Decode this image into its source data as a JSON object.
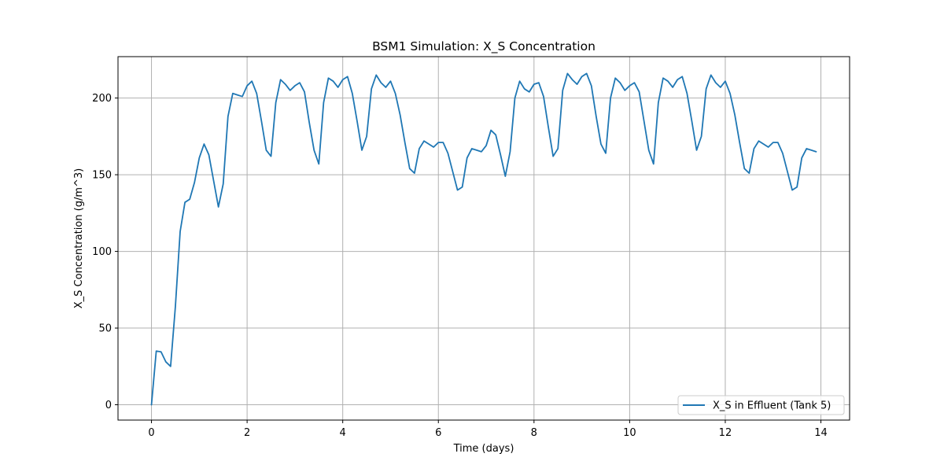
{
  "chart_data": {
    "type": "line",
    "title": "BSM1 Simulation: X_S Concentration",
    "xlabel": "Time (days)",
    "ylabel": "X_S Concentration (g/m^3)",
    "xlim": [
      -0.7,
      14.6
    ],
    "ylim": [
      -10,
      227
    ],
    "xticks": [
      0,
      2,
      4,
      6,
      8,
      10,
      12,
      14
    ],
    "yticks": [
      0,
      50,
      100,
      150,
      200
    ],
    "grid": true,
    "legend_position": "lower-right",
    "colors": {
      "series": "#1f77b4",
      "grid": "#b0b0b0"
    },
    "series": [
      {
        "name": "X_S in Effluent (Tank 5)",
        "x": [
          0.0,
          0.1,
          0.2,
          0.3,
          0.4,
          0.5,
          0.6,
          0.7,
          0.8,
          0.9,
          1.0,
          1.1,
          1.2,
          1.3,
          1.4,
          1.5,
          1.6,
          1.7,
          1.8,
          1.9,
          2.0,
          2.1,
          2.2,
          2.3,
          2.4,
          2.5,
          2.6,
          2.7,
          2.8,
          2.9,
          3.0,
          3.1,
          3.2,
          3.3,
          3.4,
          3.5,
          3.6,
          3.7,
          3.8,
          3.9,
          4.0,
          4.1,
          4.2,
          4.3,
          4.4,
          4.5,
          4.6,
          4.7,
          4.8,
          4.9,
          5.0,
          5.1,
          5.2,
          5.3,
          5.4,
          5.5,
          5.6,
          5.7,
          5.8,
          5.9,
          6.0,
          6.1,
          6.2,
          6.3,
          6.4,
          6.5,
          6.6,
          6.7,
          6.8,
          6.9,
          7.0,
          7.1,
          7.2,
          7.3,
          7.4,
          7.5,
          7.6,
          7.7,
          7.8,
          7.9,
          8.0,
          8.1,
          8.2,
          8.3,
          8.4,
          8.5,
          8.6,
          8.7,
          8.8,
          8.9,
          9.0,
          9.1,
          9.2,
          9.3,
          9.4,
          9.5,
          9.6,
          9.7,
          9.8,
          9.9,
          10.0,
          10.1,
          10.2,
          10.3,
          10.4,
          10.5,
          10.6,
          10.7,
          10.8,
          10.9,
          11.0,
          11.1,
          11.2,
          11.3,
          11.4,
          11.5,
          11.6,
          11.7,
          11.8,
          11.9,
          12.0,
          12.1,
          12.2,
          12.3,
          12.4,
          12.5,
          12.6,
          12.7,
          12.8,
          12.9,
          13.0,
          13.1,
          13.2,
          13.3,
          13.4,
          13.5,
          13.6,
          13.7,
          13.8,
          13.9
        ],
        "y": [
          0,
          35,
          34.5,
          28,
          25,
          64,
          113,
          132,
          134,
          145,
          161,
          170,
          163,
          146,
          129,
          144,
          188,
          203,
          202,
          201,
          208,
          211,
          203,
          185,
          166,
          162,
          197,
          212,
          209,
          205,
          208,
          210,
          204,
          184,
          166,
          157,
          197,
          213,
          211,
          207,
          212,
          214,
          203,
          185,
          166,
          175,
          206,
          215,
          210,
          207,
          211,
          203,
          189,
          171,
          154,
          151,
          167,
          172,
          170,
          168,
          171,
          171,
          164,
          152,
          140,
          142,
          161,
          167,
          166,
          165,
          169,
          179,
          176,
          163,
          149,
          165,
          200,
          211,
          206,
          204,
          209,
          210,
          201,
          181,
          162,
          167,
          205,
          216,
          212,
          209,
          214,
          216,
          208,
          188,
          170,
          164,
          200,
          213,
          210,
          205,
          208,
          210,
          204,
          185,
          166,
          157,
          197,
          213,
          211,
          207,
          212,
          214,
          203,
          185,
          166,
          175,
          206,
          215,
          210,
          207,
          211,
          203,
          189,
          171,
          154,
          151,
          167,
          172,
          170,
          168,
          171,
          171,
          164,
          152,
          140,
          142,
          161,
          167,
          166,
          165
        ]
      }
    ]
  }
}
